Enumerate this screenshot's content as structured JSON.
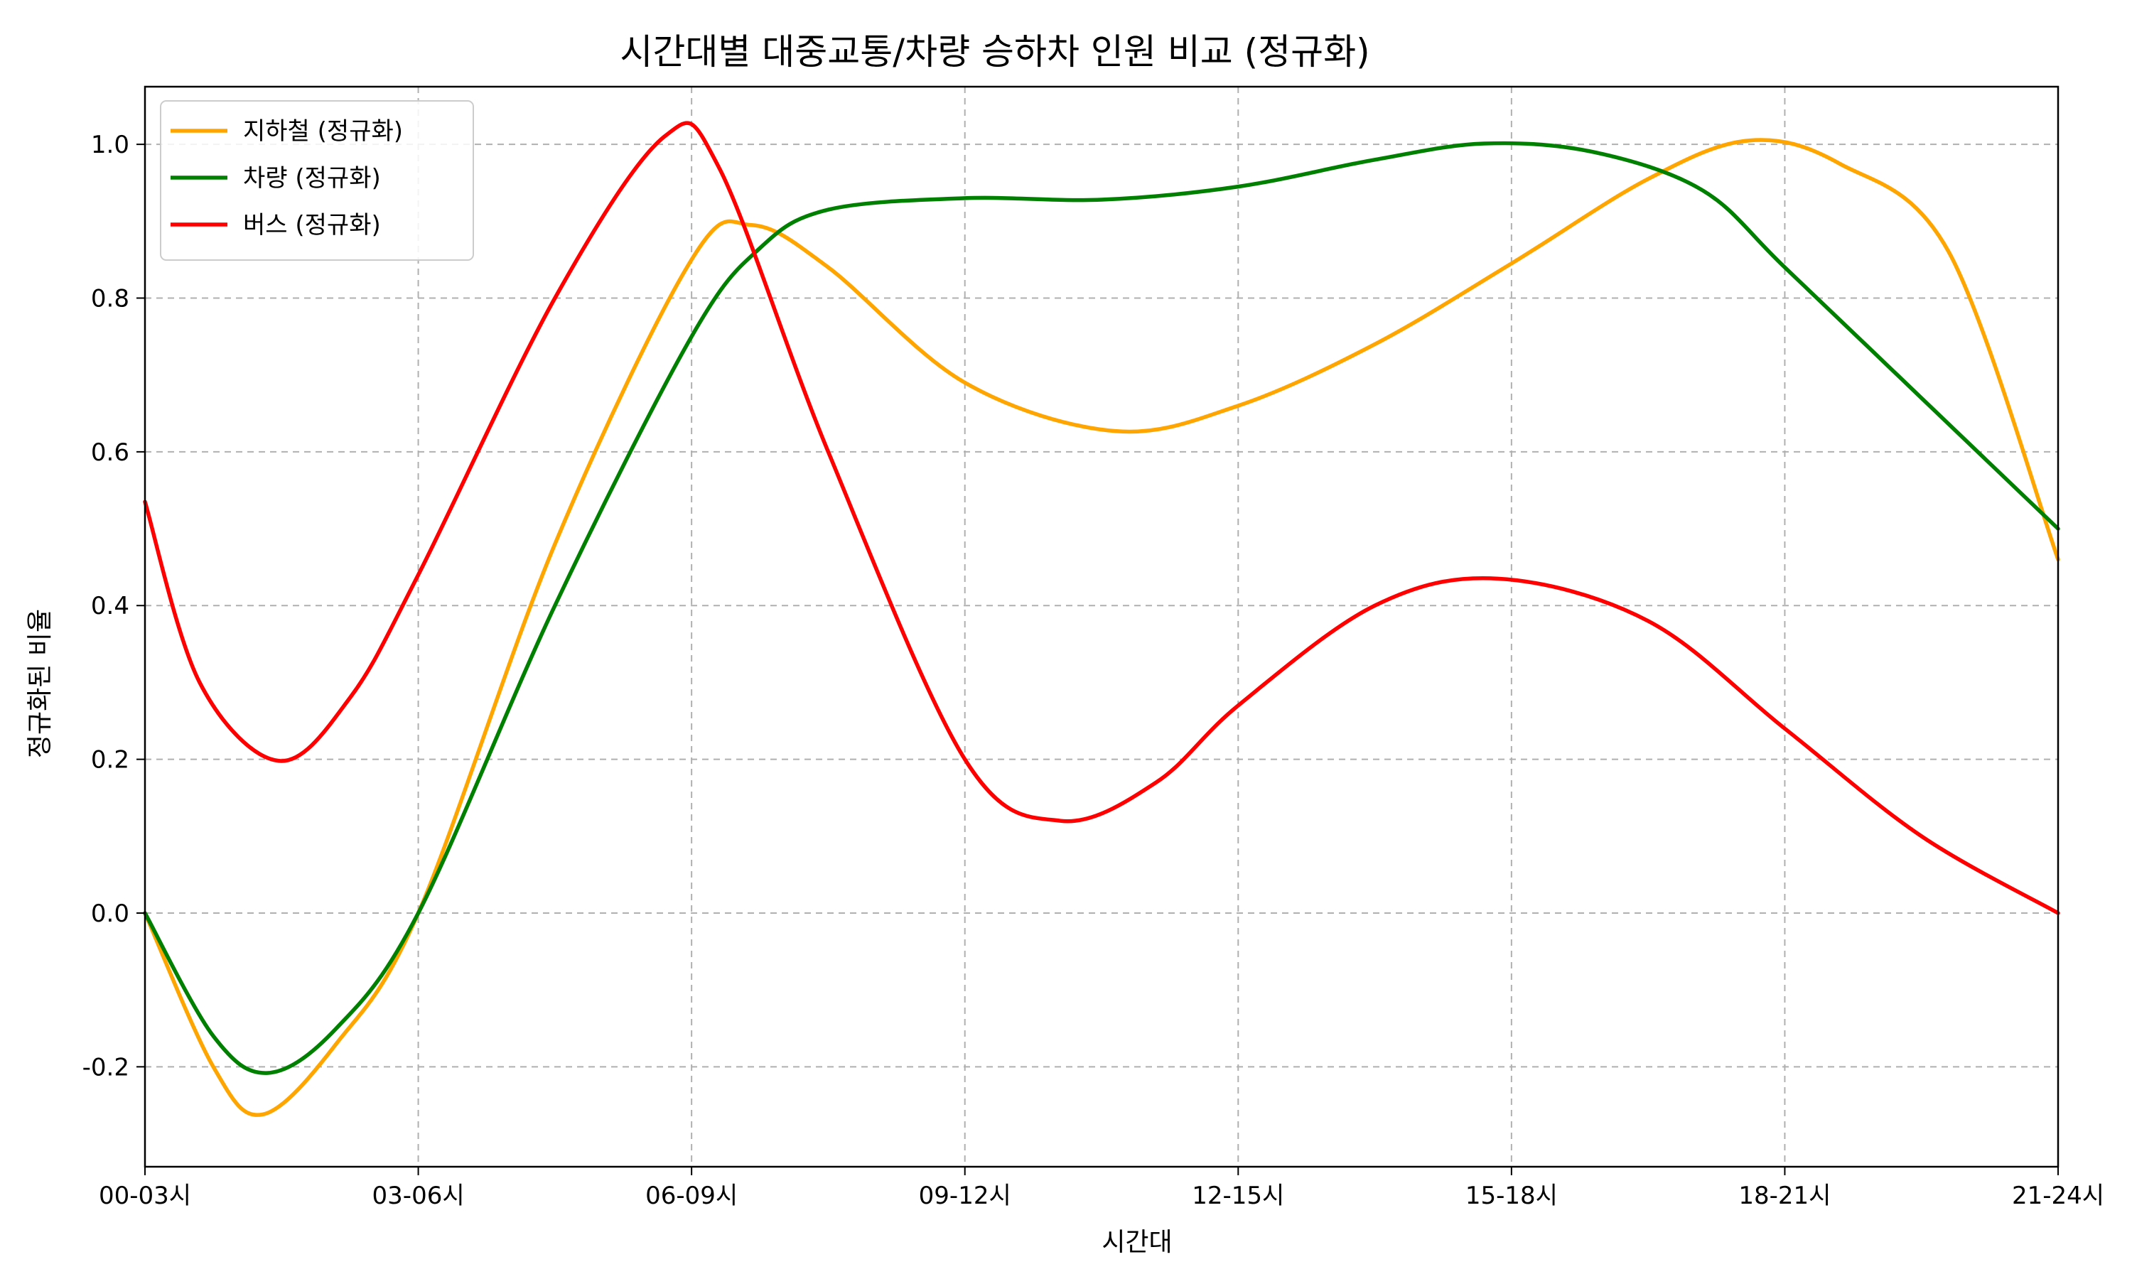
{
  "chart_data": {
    "type": "line",
    "title": "시간대별 대중교통/차량 승하차 인원 비교 (정규화)",
    "xlabel": "시간대",
    "ylabel": "정규화된 비율",
    "categories": [
      "00-03시",
      "03-06시",
      "06-09시",
      "09-12시",
      "12-15시",
      "15-18시",
      "18-21시",
      "21-24시"
    ],
    "ylim": [
      -0.33,
      1.075
    ],
    "yticks": [
      -0.2,
      0.0,
      0.2,
      0.4,
      0.6,
      0.8,
      1.0
    ],
    "ytick_labels": [
      "-0.2",
      "0.0",
      "0.2",
      "0.4",
      "0.6",
      "0.8",
      "1.0"
    ],
    "grid": true,
    "legend_position": "top-left",
    "series": [
      {
        "name": "지하철 (정규화)",
        "color": "#FFA500",
        "points": [
          [
            0.0,
            0.0
          ],
          [
            0.25,
            -0.2
          ],
          [
            0.43,
            -0.262
          ],
          [
            0.7,
            -0.17
          ],
          [
            1.0,
            0.0
          ],
          [
            1.5,
            0.48
          ],
          [
            2.0,
            0.85
          ],
          [
            2.22,
            0.895
          ],
          [
            2.5,
            0.84
          ],
          [
            3.0,
            0.69
          ],
          [
            3.55,
            0.627
          ],
          [
            4.0,
            0.66
          ],
          [
            4.5,
            0.74
          ],
          [
            5.0,
            0.845
          ],
          [
            5.5,
            0.955
          ],
          [
            5.87,
            1.005
          ],
          [
            6.2,
            0.975
          ],
          [
            6.6,
            0.86
          ],
          [
            7.0,
            0.46
          ]
        ]
      },
      {
        "name": "차량 (정규화)",
        "color": "#008000",
        "points": [
          [
            0.0,
            0.0
          ],
          [
            0.25,
            -0.16
          ],
          [
            0.45,
            -0.208
          ],
          [
            0.7,
            -0.15
          ],
          [
            1.0,
            0.0
          ],
          [
            1.5,
            0.4
          ],
          [
            2.0,
            0.75
          ],
          [
            2.25,
            0.865
          ],
          [
            2.5,
            0.915
          ],
          [
            3.0,
            0.93
          ],
          [
            3.5,
            0.928
          ],
          [
            4.0,
            0.945
          ],
          [
            4.5,
            0.98
          ],
          [
            4.9,
            1.001
          ],
          [
            5.3,
            0.99
          ],
          [
            5.7,
            0.94
          ],
          [
            6.0,
            0.84
          ],
          [
            6.5,
            0.67
          ],
          [
            7.0,
            0.5
          ]
        ]
      },
      {
        "name": "버스 (정규화)",
        "color": "#FF0000",
        "points": [
          [
            0.0,
            0.535
          ],
          [
            0.2,
            0.3
          ],
          [
            0.49,
            0.198
          ],
          [
            0.75,
            0.28
          ],
          [
            1.0,
            0.44
          ],
          [
            1.5,
            0.8
          ],
          [
            1.9,
            1.01
          ],
          [
            2.1,
            0.97
          ],
          [
            2.5,
            0.6
          ],
          [
            3.0,
            0.2
          ],
          [
            3.35,
            0.12
          ],
          [
            3.7,
            0.17
          ],
          [
            4.0,
            0.27
          ],
          [
            4.5,
            0.4
          ],
          [
            4.95,
            0.435
          ],
          [
            5.5,
            0.38
          ],
          [
            6.0,
            0.24
          ],
          [
            6.5,
            0.1
          ],
          [
            7.0,
            0.0
          ]
        ]
      }
    ]
  }
}
